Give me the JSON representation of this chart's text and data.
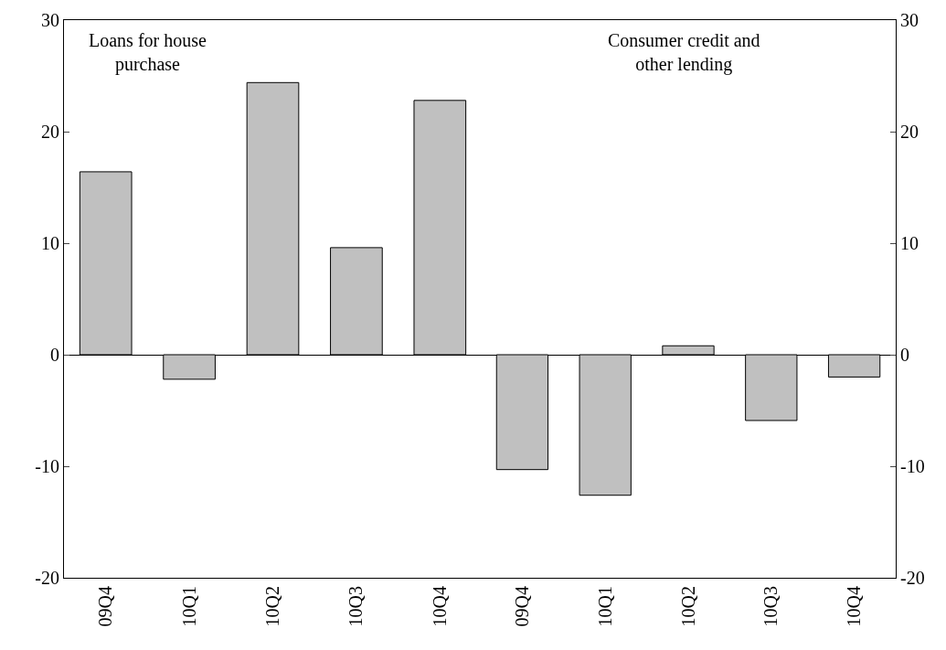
{
  "chart_data": [
    {
      "type": "bar",
      "title": "Loans for house purchase",
      "categories": [
        "09Q4",
        "10Q1",
        "10Q2",
        "10Q3",
        "10Q4"
      ],
      "values": [
        16.4,
        -2.2,
        24.4,
        9.6,
        22.8
      ],
      "color": "#c0c0c0",
      "ylim": [
        -20,
        30
      ],
      "yticks": [
        -20,
        -10,
        0,
        10,
        20,
        30
      ]
    },
    {
      "type": "bar",
      "title": "Consumer credit and other lending",
      "categories": [
        "09Q4",
        "10Q1",
        "10Q2",
        "10Q3",
        "10Q4"
      ],
      "values": [
        -10.3,
        -12.6,
        0.8,
        -5.9,
        -2.0
      ],
      "color": "#c0c0c0",
      "ylim": [
        -20,
        30
      ],
      "yticks": [
        -20,
        -10,
        0,
        10,
        20,
        30
      ]
    }
  ]
}
